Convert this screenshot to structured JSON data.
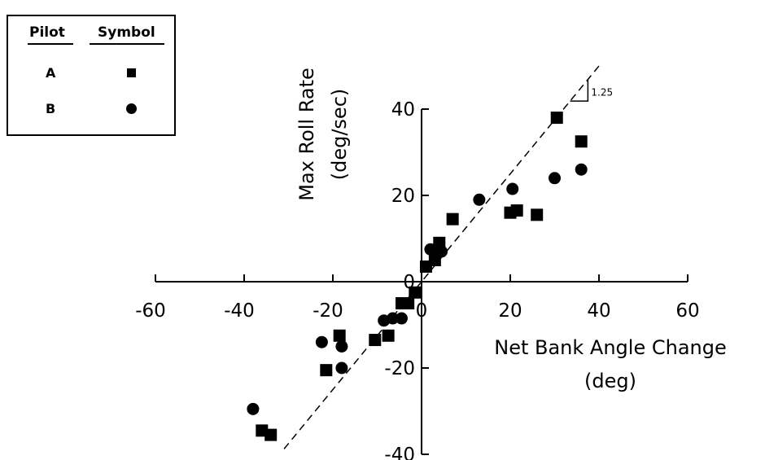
{
  "legend": {
    "headers": {
      "pilot": "Pilot",
      "symbol": "Symbol"
    },
    "rows": [
      {
        "pilot": "A",
        "marker": "square"
      },
      {
        "pilot": "B",
        "marker": "circle"
      }
    ]
  },
  "chart_data": {
    "type": "scatter",
    "xlabel_line1": "Net Bank Angle Change",
    "xlabel_line2": "(deg)",
    "ylabel_line1": "Max Roll Rate",
    "ylabel_line2": "(deg/sec)",
    "xlim": [
      -60,
      60
    ],
    "ylim": [
      -40,
      40
    ],
    "x_ticks": [
      -60,
      -40,
      -20,
      0,
      20,
      40,
      60
    ],
    "y_ticks": [
      -40,
      -20,
      0,
      20,
      40
    ],
    "x_tick_labels": [
      "-60",
      "-40",
      "-20",
      "0",
      "20",
      "40",
      "60"
    ],
    "y_tick_labels": [
      "-40",
      "-20",
      "0",
      "20",
      "40"
    ],
    "reference_line": {
      "slope": 1.25,
      "label": "1.25",
      "style": "dashed"
    },
    "series": [
      {
        "name": "A",
        "marker": "square",
        "points": [
          [
            -36,
            -34.5
          ],
          [
            -34,
            -35.5
          ],
          [
            -21.5,
            -20.5
          ],
          [
            -18.5,
            -12.5
          ],
          [
            -10.5,
            -13.5
          ],
          [
            -7.5,
            -12.5
          ],
          [
            -4.5,
            -5
          ],
          [
            -3,
            -5
          ],
          [
            -1.5,
            -2.5
          ],
          [
            1,
            3.5
          ],
          [
            3,
            5
          ],
          [
            4,
            9
          ],
          [
            7,
            14.5
          ],
          [
            20,
            16
          ],
          [
            21.5,
            16.5
          ],
          [
            26,
            15.5
          ],
          [
            30.5,
            38
          ],
          [
            36,
            32.5
          ]
        ]
      },
      {
        "name": "B",
        "marker": "circle",
        "points": [
          [
            -38,
            -29.5
          ],
          [
            -22.5,
            -14
          ],
          [
            -18,
            -15
          ],
          [
            -18,
            -20
          ],
          [
            -8.5,
            -9
          ],
          [
            -6.5,
            -8.5
          ],
          [
            -4.5,
            -8.5
          ],
          [
            2,
            7.5
          ],
          [
            3.5,
            6.5
          ],
          [
            4.5,
            7
          ],
          [
            13,
            19
          ],
          [
            20.5,
            21.5
          ],
          [
            30,
            24
          ],
          [
            36,
            26
          ]
        ]
      }
    ]
  }
}
